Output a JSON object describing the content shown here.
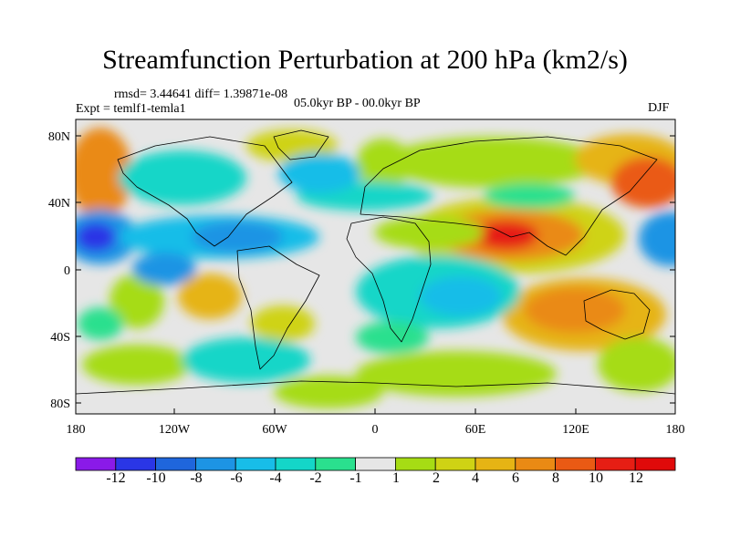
{
  "title": "Streamfunction Perturbation at 200 hPa (km2/s)",
  "stats": "rmsd= 3.44641 diff= 1.39871e-08",
  "expt": "Expt = temlf1-temla1",
  "period": "05.0kyr BP - 00.0kyr BP",
  "season": "DJF",
  "y_ticks": [
    "80N",
    "40N",
    "0",
    "40S",
    "80S"
  ],
  "x_ticks": [
    "180",
    "120W",
    "60W",
    "0",
    "60E",
    "120E",
    "180"
  ],
  "colorbar": {
    "labels": [
      "-12",
      "-10",
      "-8",
      "-6",
      "-4",
      "-2",
      "-1",
      "1",
      "2",
      "4",
      "6",
      "8",
      "10",
      "12"
    ],
    "colors": [
      "#8a1ae8",
      "#2a36e6",
      "#1f66dc",
      "#1d94e4",
      "#18bde8",
      "#14d6c8",
      "#2ae08e",
      "#e6e6e6",
      "#a6dc14",
      "#cfd314",
      "#e6b414",
      "#ea8a14",
      "#ea5a14",
      "#e61e14",
      "#e00a0a"
    ]
  }
}
